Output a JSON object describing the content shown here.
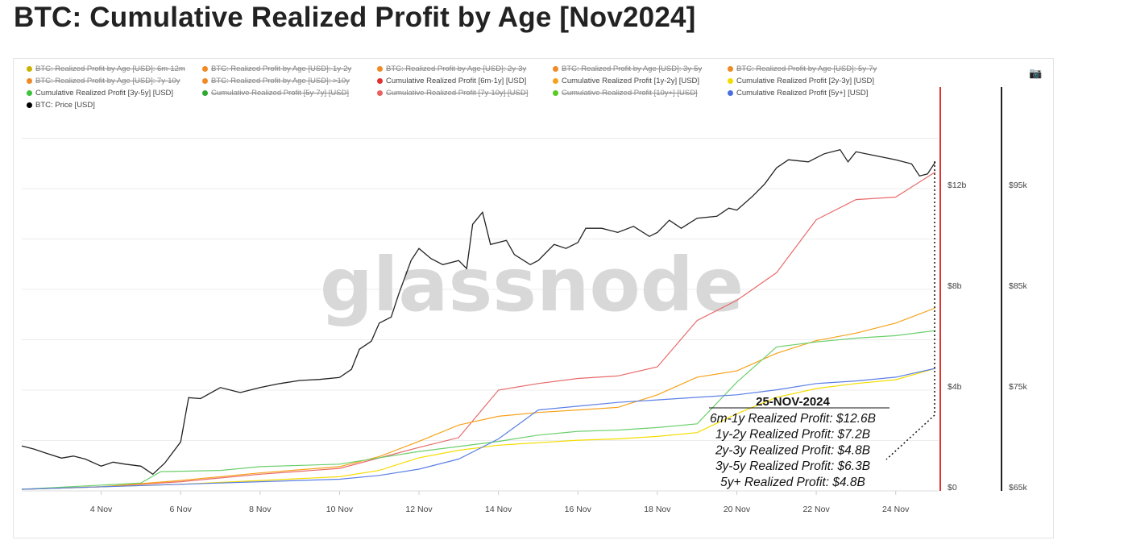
{
  "title": "BTC: Cumulative Realized Profit by Age [Nov2024]",
  "legend": [
    {
      "label": "BTC: Realized Profit by Age [USD]: 6m-12m",
      "color": "#c8b400",
      "hidden": true
    },
    {
      "label": "BTC: Realized Profit by Age [USD]: 1y-2y",
      "color": "#f08a24",
      "hidden": true
    },
    {
      "label": "BTC: Realized Profit by Age [USD]: 2y-3y",
      "color": "#f08a24",
      "hidden": true
    },
    {
      "label": "BTC: Realized Profit by Age [USD]: 3y-5y",
      "color": "#f08a24",
      "hidden": true
    },
    {
      "label": "BTC: Realized Profit by Age [USD]: 5y-7y",
      "color": "#f08a24",
      "hidden": true
    },
    {
      "label": "BTC: Realized Profit by Age [USD]: 7y-10y",
      "color": "#f08a24",
      "hidden": true
    },
    {
      "label": "BTC: Realized Profit by Age [USD]: >10y",
      "color": "#f08a24",
      "hidden": true
    },
    {
      "label": "Cumulative Realized Profit [6m-1y] [USD]",
      "color": "#e03030",
      "hidden": false
    },
    {
      "label": "Cumulative Realized Profit [1y-2y] [USD]",
      "color": "#f7a21b",
      "hidden": false
    },
    {
      "label": "Cumulative Realized Profit [2y-3y] [USD]",
      "color": "#f5dc00",
      "hidden": false
    },
    {
      "label": "Cumulative Realized Profit [3y-5y] [USD]",
      "color": "#3cc43c",
      "hidden": false
    },
    {
      "label": "Cumulative Realized Profit [5y-7y] [USD]",
      "color": "#2fa82f",
      "hidden": true
    },
    {
      "label": "Cumulative Realized Profit [7y-10y] [USD]",
      "color": "#e86060",
      "hidden": true
    },
    {
      "label": "Cumulative Realized Profit [10y+] [USD]",
      "color": "#55cc22",
      "hidden": true
    },
    {
      "label": "Cumulative Realized Profit [5y+] [USD]",
      "color": "#4a6fe0",
      "hidden": false
    },
    {
      "label": "BTC: Price [USD]",
      "color": "#000000",
      "hidden": false
    }
  ],
  "icons": {
    "camera": "camera-icon"
  },
  "watermark": "glassnode",
  "annotation": {
    "date": "25-NOV-2024",
    "lines": [
      "6m-1y Realized Profit: $12.6B",
      "1y-2y Realized Profit: $7.2B",
      "2y-3y Realized Profit: $4.8B",
      "3y-5y Realized Profit: $6.3B",
      "5y+ Realized Profit: $4.8B"
    ]
  },
  "chart_data": {
    "type": "line",
    "title": "BTC: Cumulative Realized Profit by Age [Nov2024]",
    "x_ticks": [
      "4 Nov",
      "6 Nov",
      "8 Nov",
      "10 Nov",
      "12 Nov",
      "14 Nov",
      "16 Nov",
      "18 Nov",
      "20 Nov",
      "22 Nov",
      "24 Nov"
    ],
    "x_unit": "day of Nov 2024",
    "xlim": [
      2,
      25
    ],
    "y_left": {
      "ticks": [
        "$0",
        "$4b",
        "$8b",
        "$12b"
      ],
      "lim_billion_usd": [
        0,
        14
      ],
      "color": "#e03030"
    },
    "y_right": {
      "ticks": [
        "$65k",
        "$75k",
        "$85k",
        "$95k"
      ],
      "lim_thousand_usd": [
        65,
        100.5
      ],
      "color": "#222222"
    },
    "grid": true,
    "series": [
      {
        "name": "Cumulative Realized Profit [6m-1y] [USD]",
        "axis": "left",
        "color": "#e86a6a",
        "x": [
          2,
          4,
          6,
          8,
          10,
          12,
          13,
          14,
          15,
          16,
          17,
          18,
          19,
          20,
          21,
          22,
          23,
          24,
          25
        ],
        "y": [
          0,
          0.1,
          0.3,
          0.6,
          0.83,
          1.66,
          2.05,
          3.94,
          4.2,
          4.4,
          4.5,
          4.86,
          6.7,
          7.5,
          8.6,
          10.7,
          11.5,
          11.6,
          12.6
        ]
      },
      {
        "name": "Cumulative Realized Profit [1y-2y] [USD]",
        "axis": "left",
        "color": "#f7a21b",
        "x": [
          2,
          4,
          6,
          8,
          10,
          11,
          12,
          13,
          14,
          15,
          16,
          17,
          18,
          19,
          20,
          21,
          22,
          23,
          24,
          25
        ],
        "y": [
          0,
          0.1,
          0.35,
          0.65,
          0.9,
          1.3,
          1.9,
          2.55,
          2.9,
          3.05,
          3.15,
          3.25,
          3.75,
          4.45,
          4.7,
          5.4,
          5.9,
          6.2,
          6.6,
          7.2
        ]
      },
      {
        "name": "Cumulative Realized Profit [2y-3y] [USD]",
        "axis": "left",
        "color": "#f5dc00",
        "x": [
          2,
          6,
          8,
          10,
          11,
          12,
          13,
          14,
          15,
          16,
          17,
          18,
          19,
          20,
          21,
          22,
          23,
          24,
          25
        ],
        "y": [
          0,
          0.2,
          0.35,
          0.5,
          0.75,
          1.25,
          1.55,
          1.75,
          1.85,
          1.95,
          2.0,
          2.1,
          2.25,
          3.0,
          3.65,
          4.0,
          4.2,
          4.35,
          4.8
        ]
      },
      {
        "name": "Cumulative Realized Profit [3y-5y] [USD]",
        "axis": "left",
        "color": "#6ccf6c",
        "x": [
          2,
          5,
          5.5,
          7,
          8,
          10,
          12,
          13,
          14,
          15,
          16,
          17,
          18,
          19,
          20,
          21,
          22,
          23,
          24,
          25
        ],
        "y": [
          0,
          0.25,
          0.7,
          0.75,
          0.9,
          1.0,
          1.5,
          1.7,
          1.9,
          2.15,
          2.3,
          2.35,
          2.45,
          2.6,
          4.25,
          5.65,
          5.85,
          6.0,
          6.1,
          6.3
        ]
      },
      {
        "name": "Cumulative Realized Profit [5y+] [USD]",
        "axis": "left",
        "color": "#5b7fe6",
        "x": [
          2,
          6,
          8,
          10,
          11,
          12,
          13,
          14,
          15,
          16,
          17,
          18,
          19,
          20,
          21,
          22,
          23,
          24,
          25
        ],
        "y": [
          0,
          0.2,
          0.3,
          0.4,
          0.55,
          0.8,
          1.2,
          2.0,
          3.15,
          3.3,
          3.45,
          3.55,
          3.65,
          3.75,
          3.95,
          4.2,
          4.3,
          4.45,
          4.8
        ]
      },
      {
        "name": "BTC: Price [USD]",
        "axis": "right",
        "color": "#222222",
        "x": [
          2,
          2.3,
          2.6,
          3,
          3.3,
          3.6,
          4,
          4.3,
          4.6,
          5,
          5.3,
          5.6,
          6,
          6.2,
          6.5,
          7,
          7.5,
          8,
          8.5,
          9,
          9.5,
          10,
          10.3,
          10.5,
          10.8,
          11,
          11.3,
          11.5,
          11.8,
          12,
          12.3,
          12.6,
          13,
          13.2,
          13.35,
          13.6,
          13.8,
          14.2,
          14.4,
          14.8,
          15,
          15.4,
          15.7,
          16,
          16.2,
          16.6,
          17,
          17.4,
          17.8,
          18,
          18.3,
          18.6,
          19,
          19.5,
          19.8,
          20,
          20.4,
          20.7,
          21,
          21.3,
          21.8,
          22.2,
          22.6,
          22.8,
          23,
          23.5,
          24,
          24.4,
          24.6,
          24.8,
          25
        ],
        "y": [
          69.3,
          69.0,
          68.6,
          68.1,
          68.3,
          68.0,
          67.3,
          67.7,
          67.5,
          67.3,
          66.5,
          67.6,
          69.7,
          74.1,
          74.0,
          75.1,
          74.6,
          75.1,
          75.5,
          75.8,
          75.9,
          76.1,
          76.9,
          78.9,
          79.7,
          81.5,
          82.1,
          84.5,
          87.7,
          88.9,
          87.9,
          87.3,
          87.7,
          86.9,
          91.3,
          92.5,
          89.3,
          89.7,
          88.3,
          87.3,
          87.7,
          89.3,
          88.9,
          89.5,
          90.9,
          90.9,
          90.5,
          91.1,
          90.1,
          90.5,
          91.7,
          90.9,
          91.9,
          92.1,
          92.9,
          92.7,
          94.1,
          95.3,
          96.9,
          97.7,
          97.5,
          98.3,
          98.7,
          97.5,
          98.5,
          98.1,
          97.7,
          97.3,
          96.1,
          96.3,
          97.5
        ]
      }
    ]
  }
}
